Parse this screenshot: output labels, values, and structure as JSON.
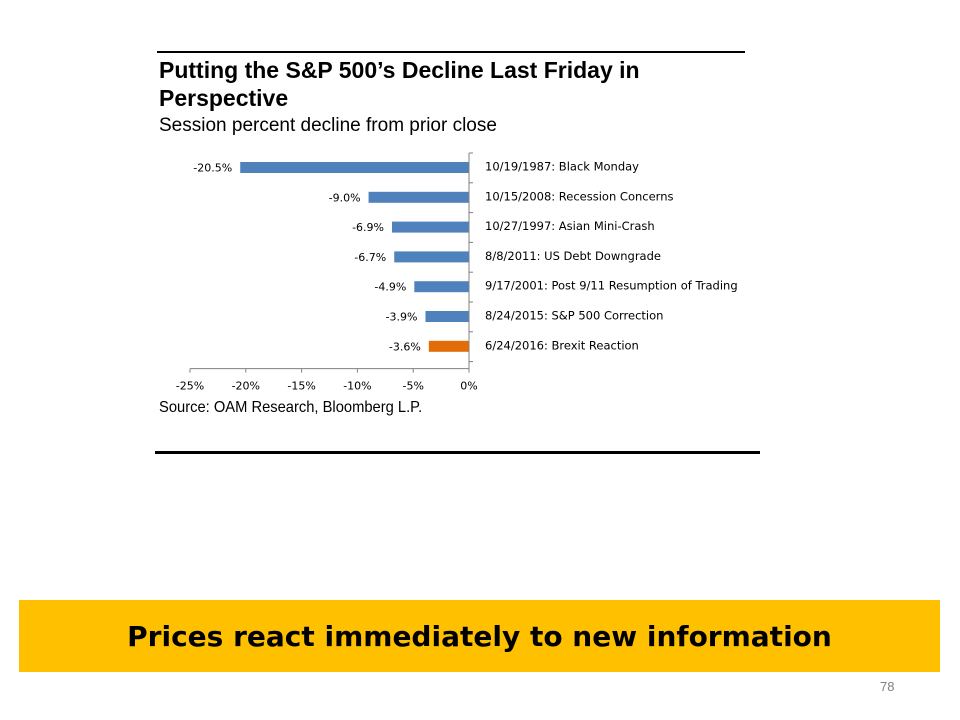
{
  "chart_data": {
    "type": "bar",
    "orientation": "horizontal",
    "title": "Putting the S&P 500’s Decline Last Friday in Perspective",
    "subtitle": "Session percent decline from prior close",
    "categories": [
      "10/19/1987: Black Monday",
      "10/15/2008: Recession Concerns",
      "10/27/1997: Asian Mini-Crash",
      "8/8/2011: US Debt Downgrade",
      "9/17/2001: Post 9/11 Resumption of Trading",
      "8/24/2015: S&P 500 Correction",
      "6/24/2016: Brexit Reaction"
    ],
    "values": [
      -20.5,
      -9.0,
      -6.9,
      -6.7,
      -4.9,
      -3.9,
      -3.6
    ],
    "value_labels": [
      "-20.5%",
      "-9.0%",
      "-6.9%",
      "-6.7%",
      "-4.9%",
      "-3.9%",
      "-3.6%"
    ],
    "bar_colors": [
      "#4f81bd",
      "#4f81bd",
      "#4f81bd",
      "#4f81bd",
      "#4f81bd",
      "#4f81bd",
      "#e36c09"
    ],
    "xlim": [
      -25,
      0
    ],
    "xticks": [
      -25,
      -20,
      -15,
      -10,
      -5,
      0
    ],
    "xtick_labels": [
      "-25%",
      "-20%",
      "-15%",
      "-10%",
      "-5%",
      "0%"
    ],
    "grid": false,
    "source": "Source:  OAM Research, Bloomberg L.P."
  },
  "banner": {
    "text": "Prices react immediately to new information",
    "color": "#ffc000"
  },
  "page_number": "78"
}
